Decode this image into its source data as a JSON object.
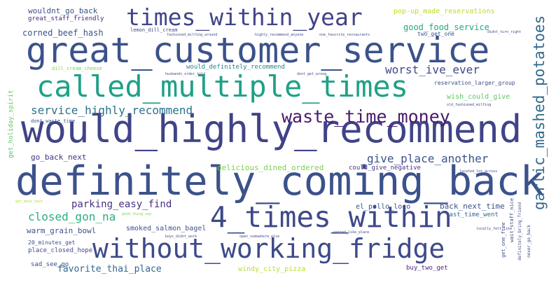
{
  "wordcloud": {
    "words": [
      {
        "text": "great_customer_service",
        "color": "#3b528b"
      },
      {
        "text": "would_highly_recommend",
        "color": "#404387"
      },
      {
        "text": "definitely_coming_back",
        "color": "#3b528b"
      },
      {
        "text": "called_multiple_times",
        "color": "#1fa187"
      },
      {
        "text": "times_within_year",
        "color": "#414487"
      },
      {
        "text": "without_working_fridge",
        "color": "#3e4a89"
      },
      {
        "text": "4_times_within",
        "color": "#3e4989"
      },
      {
        "text": "waste_time_money",
        "color": "#481a6c"
      },
      {
        "text": "garlic_mashed_potatoes",
        "color": "#31688e"
      },
      {
        "text": "service_highly_recommend",
        "color": "#2c728e"
      },
      {
        "text": "worst_ive_ever",
        "color": "#3e4a89"
      },
      {
        "text": "give_place_another",
        "color": "#3b528b"
      },
      {
        "text": "closed_gon_na",
        "color": "#2ab07f"
      },
      {
        "text": "parking_easy_find",
        "color": "#46327e"
      },
      {
        "text": "favorite_thai_place",
        "color": "#31688e"
      },
      {
        "text": "corned_beef_hash",
        "color": "#3b528b"
      },
      {
        "text": "good_food_service",
        "color": "#22a884"
      },
      {
        "text": "wouldnt_go_back",
        "color": "#3b528b"
      },
      {
        "text": "pop-up_made_reservations",
        "color": "#b5de2b"
      },
      {
        "text": "great_staff_friendly",
        "color": "#482878"
      },
      {
        "text": "delicious_dined_ordered",
        "color": "#7ad151"
      },
      {
        "text": "go_back_next",
        "color": "#46327e"
      },
      {
        "text": "would_definitely_recommend",
        "color": "#26828e"
      },
      {
        "text": "el_pollo_loco",
        "color": "#3b528b"
      },
      {
        "text": "back_next_time",
        "color": "#3b528b"
      },
      {
        "text": "warm_grain_bowl",
        "color": "#3b528b"
      },
      {
        "text": "wish_could_give",
        "color": "#5ec962"
      },
      {
        "text": "could_give_negative",
        "color": "#46327e"
      },
      {
        "text": "get_holiday_spirit",
        "color": "#5ec962"
      },
      {
        "text": "windy_city_pizza",
        "color": "#b5de2b"
      },
      {
        "text": "buy_two_get",
        "color": "#482878"
      },
      {
        "text": "last_time_went",
        "color": "#31688e"
      },
      {
        "text": "smoked_salmon_bagel",
        "color": "#3b528b"
      },
      {
        "text": "place_closed_hope",
        "color": "#3e4a89"
      },
      {
        "text": "sad_see_go",
        "color": "#3e4a89"
      },
      {
        "text": "20_minutes_get",
        "color": "#3b528b"
      },
      {
        "text": "reservation_larger_group",
        "color": "#3e4a89"
      },
      {
        "text": "dont_waste_time",
        "color": "#3b528b"
      },
      {
        "text": "lemon_dill_cream",
        "color": "#3e4a89"
      },
      {
        "text": "dill_cream_cheese",
        "color": "#7ad151"
      },
      {
        "text": "two_get_one",
        "color": "#3b528b"
      },
      {
        "text": "get_one_free",
        "color": "#3e4a89"
      },
      {
        "text": "wait_staff_nice",
        "color": "#3e4a89"
      },
      {
        "text": "husbands_order_told",
        "color": "#3e4a89"
      },
      {
        "text": "dont_get_wrong",
        "color": "#3e4a89"
      },
      {
        "text": "old_fashioned_milfing",
        "color": "#3e4a89"
      },
      {
        "text": "didnt_turn_right",
        "color": "#3e4a89"
      },
      {
        "text": "highly_recommend_anyone",
        "color": "#3e4a89"
      },
      {
        "text": "one_favorite_restaurants",
        "color": "#3e4a89"
      },
      {
        "text": "fashioned_milfing_around",
        "color": "#3e4a89"
      },
      {
        "text": "good_thing_say",
        "color": "#7ad151"
      },
      {
        "text": "boys_didnt_work",
        "color": "#3e4a89"
      },
      {
        "text": "open_somewhere_else",
        "color": "#3e4a89"
      },
      {
        "text": "wanted_like_place",
        "color": "#3e4a89"
      },
      {
        "text": "located_lot_across",
        "color": "#3e4a89"
      },
      {
        "text": "locally_felt_like",
        "color": "#3e4a89"
      },
      {
        "text": "get_meds_back",
        "color": "#b5de2b"
      },
      {
        "text": "definitely_bring_friend",
        "color": "#3e4a89"
      },
      {
        "text": "never_go_back",
        "color": "#3e4a89"
      }
    ]
  }
}
